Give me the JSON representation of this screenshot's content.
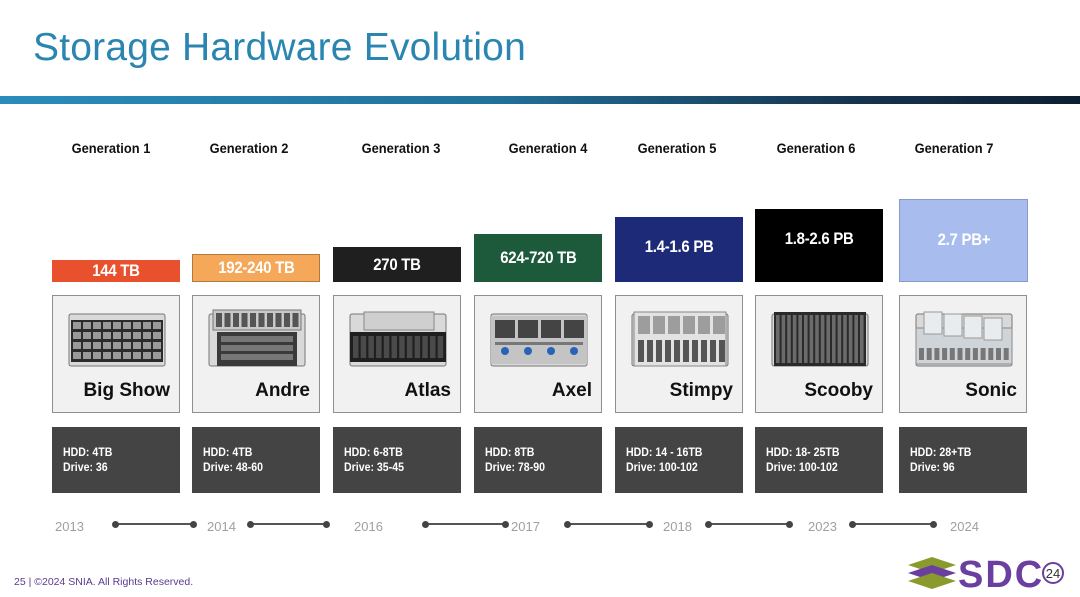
{
  "slide": {
    "title": "Storage Hardware Evolution",
    "footer": "25 | ©2024 SNIA. All Rights Reserved.",
    "logo_text": "SDC",
    "logo_badge": "24"
  },
  "generations": [
    {
      "label": "Generation 1",
      "capacity": "144 TB",
      "capacity_bg": "#e8502e",
      "capacity_fg": "#ffffff",
      "server": "Big Show",
      "icon": "server-rack-icon",
      "hdd": "HDD: 4TB",
      "drive": "Drive: 36",
      "year": "2013"
    },
    {
      "label": "Generation 2",
      "capacity": "192-240 TB",
      "capacity_bg": "#f5a85a",
      "capacity_fg": "#ffffff",
      "server": "Andre",
      "icon": "server-rack-icon",
      "hdd": "HDD: 4TB",
      "drive": "Drive: 48-60",
      "year": "2014"
    },
    {
      "label": "Generation 3",
      "capacity": "270 TB",
      "capacity_bg": "#1f1f1f",
      "capacity_fg": "#ffffff",
      "server": "Atlas",
      "icon": "server-rack-icon",
      "hdd": "HDD: 6-8TB",
      "drive": "Drive: 35-45",
      "year": "2016"
    },
    {
      "label": "Generation 4",
      "capacity": "624-720 TB",
      "capacity_bg": "#1d5a3b",
      "capacity_fg": "#ffffff",
      "server": "Axel",
      "icon": "server-rack-icon",
      "hdd": "HDD: 8TB",
      "drive": "Drive: 78-90",
      "year": "2017"
    },
    {
      "label": "Generation 5",
      "capacity": "1.4-1.6 PB",
      "capacity_bg": "#1c2a78",
      "capacity_fg": "#ffffff",
      "server": "Stimpy",
      "icon": "server-rack-icon",
      "hdd": "HDD: 14 - 16TB",
      "drive": "Drive: 100-102",
      "year": "2018"
    },
    {
      "label": "Generation 6",
      "capacity": "1.8-2.6 PB",
      "capacity_bg": "#000000",
      "capacity_fg": "#ffffff",
      "server": "Scooby",
      "icon": "server-rack-icon",
      "hdd": "HDD: 18- 25TB",
      "drive": "Drive: 100-102",
      "year": "2023"
    },
    {
      "label": "Generation 7",
      "capacity": "2.7 PB+",
      "capacity_bg": "#a8bdee",
      "capacity_fg": "#ffffff",
      "server": "Sonic",
      "icon": "server-rack-icon",
      "hdd": "HDD: 28+TB",
      "drive": "Drive: 96",
      "year": "2024"
    }
  ]
}
